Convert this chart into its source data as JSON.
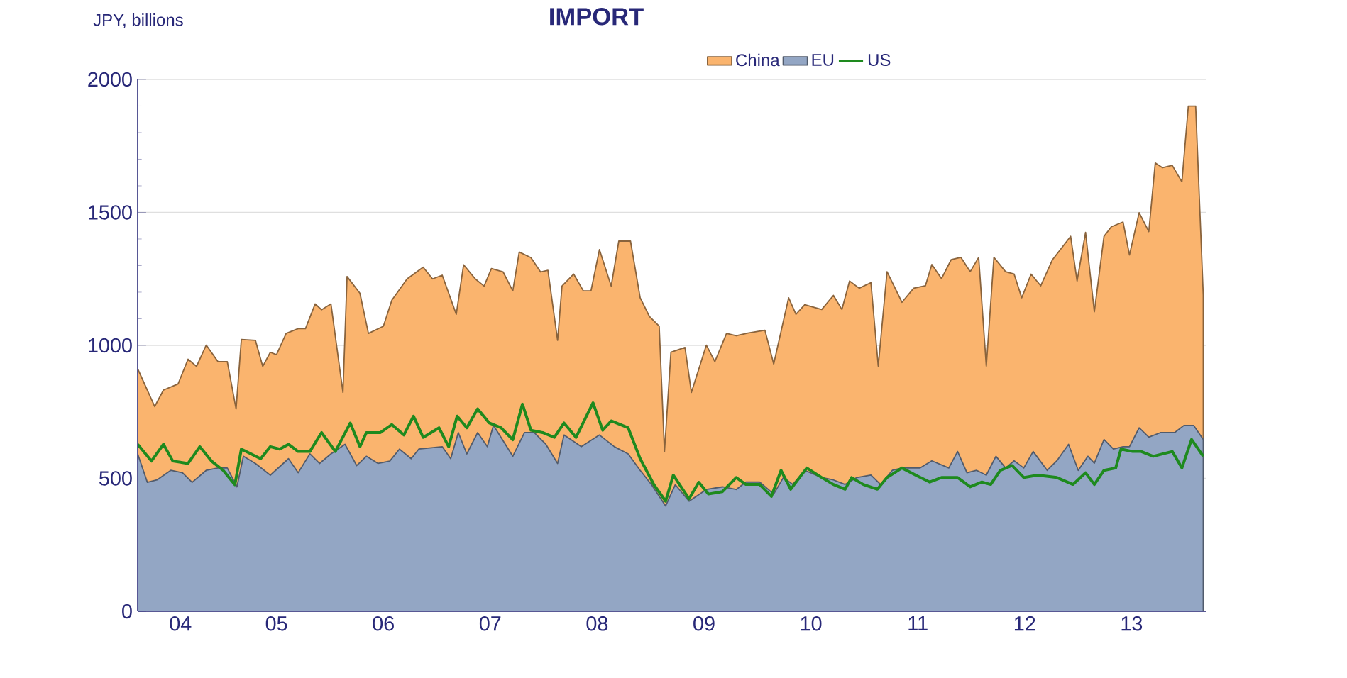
{
  "chart_data": {
    "type": "area",
    "title": "IMPORT",
    "ylabel": "JPY, billions",
    "xlim": [
      "2004-03-15",
      "2014-03-15"
    ],
    "ylim": [
      0,
      2000
    ],
    "yticks": [
      0,
      500,
      1000,
      1500,
      2000
    ],
    "xticks": [
      {
        "value": "2005-01-01",
        "label": null
      },
      {
        "value": "2006-01-01",
        "label": null
      },
      {
        "value": "2007-01-01",
        "label": null
      },
      {
        "value": "2008-01-01",
        "label": null
      },
      {
        "value": "2009-01-01",
        "label": null
      },
      {
        "value": "2010-01-01",
        "label": null
      },
      {
        "value": "2011-01-01",
        "label": null
      },
      {
        "value": "2012-01-01",
        "label": null
      },
      {
        "value": "2013-01-01",
        "label": null
      },
      {
        "value": "2014-01-01",
        "label": null
      },
      {
        "value": "2004-08-08",
        "label": "04"
      },
      {
        "value": "2005-07-02",
        "label": "05"
      },
      {
        "value": "2006-07-02",
        "label": "06"
      },
      {
        "value": "2007-07-02",
        "label": "07"
      },
      {
        "value": "2008-07-02",
        "label": "08"
      },
      {
        "value": "2009-07-02",
        "label": "09"
      },
      {
        "value": "2010-07-02",
        "label": "10"
      },
      {
        "value": "2011-07-02",
        "label": "11"
      },
      {
        "value": "2012-07-02",
        "label": "12"
      },
      {
        "value": "2013-07-02",
        "label": "13"
      }
    ],
    "grid": "y",
    "legend": "top",
    "series": [
      {
        "name": "China",
        "color": "#fab46e",
        "x": [
          "2004-03-15",
          "2004-05-12",
          "2004-06-11",
          "2004-07-31",
          "2004-09-03",
          "2004-10-02",
          "2004-11-04",
          "2004-12-14",
          "2005-01-15",
          "2005-02-14",
          "2005-03-04",
          "2005-04-21",
          "2005-05-16",
          "2005-06-11",
          "2005-07-02",
          "2005-08-04",
          "2005-09-14",
          "2005-10-09",
          "2005-11-11",
          "2005-12-03",
          "2006-01-04",
          "2006-02-14",
          "2006-02-28",
          "2006-04-13",
          "2006-05-12",
          "2006-07-02",
          "2006-07-31",
          "2006-09-21",
          "2006-11-15",
          "2006-12-17",
          "2007-01-19",
          "2007-03-08",
          "2007-04-02",
          "2007-05-12",
          "2007-06-11",
          "2007-07-06",
          "2007-08-15",
          "2007-09-17",
          "2007-10-09",
          "2007-11-18",
          "2007-12-21",
          "2008-01-15",
          "2008-02-17",
          "2008-03-04",
          "2008-04-13",
          "2008-05-16",
          "2008-06-11",
          "2008-07-10",
          "2008-08-19",
          "2008-09-14",
          "2008-10-24",
          "2008-11-26",
          "2008-12-28",
          "2009-01-30",
          "2009-02-17",
          "2009-03-11",
          "2009-04-28",
          "2009-05-20",
          "2009-07-10",
          "2009-08-08",
          "2009-09-17",
          "2009-10-20",
          "2009-11-29",
          "2010-01-26",
          "2010-02-25",
          "2010-04-17",
          "2010-05-12",
          "2010-06-11",
          "2010-08-08",
          "2010-09-17",
          "2010-10-16",
          "2010-11-11",
          "2010-12-14",
          "2011-01-23",
          "2011-02-17",
          "2011-03-19",
          "2011-05-09",
          "2011-06-18",
          "2011-07-28",
          "2011-08-19",
          "2011-09-21",
          "2011-10-24",
          "2011-11-26",
          "2011-12-28",
          "2012-01-26",
          "2012-02-21",
          "2012-03-19",
          "2012-04-28",
          "2012-05-27",
          "2012-06-22",
          "2012-07-24",
          "2012-08-26",
          "2012-10-05",
          "2012-12-06",
          "2012-12-28",
          "2013-01-26",
          "2013-02-25",
          "2013-03-30",
          "2013-04-24",
          "2013-06-03",
          "2013-06-25",
          "2013-07-28",
          "2013-08-30",
          "2013-09-21",
          "2013-10-16",
          "2013-11-18",
          "2013-12-21",
          "2014-01-12",
          "2014-02-06",
          "2014-03-04"
        ],
        "values": [
          912,
          770,
          832,
          855,
          948,
          921,
          1001,
          939,
          939,
          761,
          1022,
          1019,
          921,
          974,
          965,
          1045,
          1063,
          1063,
          1156,
          1134,
          1156,
          823,
          1259,
          1196,
          1045,
          1072,
          1170,
          1250,
          1294,
          1250,
          1264,
          1117,
          1303,
          1250,
          1223,
          1289,
          1276,
          1205,
          1351,
          1330,
          1276,
          1282,
          1019,
          1223,
          1268,
          1205,
          1205,
          1360,
          1223,
          1392,
          1392,
          1179,
          1108,
          1072,
          601,
          974,
          992,
          823,
          1001,
          939,
          1045,
          1036,
          1046,
          1057,
          930,
          1179,
          1117,
          1153,
          1135,
          1188,
          1135,
          1242,
          1215,
          1236,
          922,
          1277,
          1162,
          1215,
          1224,
          1304,
          1251,
          1322,
          1331,
          1277,
          1331,
          922,
          1331,
          1277,
          1268,
          1179,
          1268,
          1224,
          1322,
          1410,
          1242,
          1425,
          1126,
          1410,
          1446,
          1464,
          1340,
          1499,
          1428,
          1686,
          1668,
          1677,
          1615,
          1900,
          1900,
          1188
        ]
      },
      {
        "name": "US",
        "type": "line",
        "color": "#1e8a1e",
        "x": [
          "2004-03-15",
          "2004-05-01",
          "2004-06-11",
          "2004-07-13",
          "2004-09-03",
          "2004-10-13",
          "2004-11-22",
          "2005-01-01",
          "2005-02-10",
          "2005-03-04",
          "2005-05-09",
          "2005-06-11",
          "2005-07-13",
          "2005-08-12",
          "2005-09-14",
          "2005-10-24",
          "2005-12-03",
          "2006-01-19",
          "2006-03-11",
          "2006-04-13",
          "2006-05-05",
          "2006-06-22",
          "2006-07-31",
          "2006-09-10",
          "2006-10-13",
          "2006-11-15",
          "2007-01-08",
          "2007-02-10",
          "2007-03-11",
          "2007-04-13",
          "2007-05-20",
          "2007-06-29",
          "2007-08-08",
          "2007-09-17",
          "2007-10-20",
          "2007-11-18",
          "2007-12-28",
          "2008-02-06",
          "2008-03-11",
          "2008-04-21",
          "2008-06-18",
          "2008-07-21",
          "2008-08-19",
          "2008-10-16",
          "2008-11-26",
          "2009-01-12",
          "2009-02-21",
          "2009-03-19",
          "2009-05-12",
          "2009-06-14",
          "2009-07-17",
          "2009-09-03",
          "2009-10-20",
          "2009-11-22",
          "2010-01-08",
          "2010-02-17",
          "2010-03-22",
          "2010-04-24",
          "2010-06-18",
          "2010-08-08",
          "2010-09-17",
          "2010-10-27",
          "2010-11-18",
          "2010-12-28",
          "2011-02-14",
          "2011-03-19",
          "2011-05-09",
          "2011-06-25",
          "2011-08-12",
          "2011-09-21",
          "2011-11-15",
          "2011-12-28",
          "2012-02-06",
          "2012-03-08",
          "2012-04-10",
          "2012-05-20",
          "2012-06-29",
          "2012-08-15",
          "2012-10-20",
          "2012-12-14",
          "2013-01-26",
          "2013-02-25",
          "2013-03-30",
          "2013-05-09",
          "2013-05-27",
          "2013-07-06",
          "2013-08-04",
          "2013-09-14",
          "2013-11-18",
          "2013-12-21",
          "2014-01-23",
          "2014-03-04"
        ],
        "values": [
          628,
          565,
          628,
          565,
          556,
          619,
          565,
          530,
          476,
          610,
          574,
          619,
          610,
          628,
          601,
          601,
          672,
          601,
          708,
          619,
          672,
          672,
          702,
          663,
          734,
          654,
          690,
          619,
          734,
          690,
          761,
          708,
          690,
          645,
          779,
          681,
          672,
          654,
          708,
          654,
          784,
          681,
          716,
          690,
          574,
          476,
          414,
          512,
          423,
          485,
          441,
          450,
          503,
          477,
          477,
          432,
          530,
          459,
          539,
          503,
          477,
          459,
          503,
          477,
          459,
          503,
          539,
          512,
          486,
          503,
          503,
          468,
          486,
          477,
          530,
          548,
          503,
          512,
          503,
          477,
          521,
          477,
          530,
          539,
          610,
          601,
          601,
          583,
          601,
          539,
          646,
          583
        ]
      },
      {
        "name": "EU",
        "color": "#93a6c4",
        "x": [
          "2004-03-15",
          "2004-04-17",
          "2004-05-20",
          "2004-07-06",
          "2004-08-15",
          "2004-09-17",
          "2004-11-04",
          "2004-12-14",
          "2005-01-15",
          "2005-02-17",
          "2005-03-11",
          "2005-04-21",
          "2005-06-11",
          "2005-08-12",
          "2005-09-14",
          "2005-10-24",
          "2005-11-26",
          "2006-01-04",
          "2006-02-21",
          "2006-04-02",
          "2006-05-05",
          "2006-06-14",
          "2006-07-24",
          "2006-08-26",
          "2006-10-05",
          "2006-10-31",
          "2007-01-19",
          "2007-02-17",
          "2007-03-15",
          "2007-04-13",
          "2007-05-20",
          "2007-06-22",
          "2007-07-13",
          "2007-09-17",
          "2007-10-27",
          "2007-11-29",
          "2008-01-08",
          "2008-02-17",
          "2008-03-11",
          "2008-05-09",
          "2008-07-10",
          "2008-08-30",
          "2008-10-16",
          "2008-11-26",
          "2009-01-04",
          "2009-02-21",
          "2009-03-26",
          "2009-05-12",
          "2009-07-10",
          "2009-09-03",
          "2009-10-20",
          "2009-11-22",
          "2010-01-08",
          "2010-02-25",
          "2010-03-30",
          "2010-05-01",
          "2010-06-11",
          "2010-08-08",
          "2010-09-17",
          "2010-10-27",
          "2010-12-06",
          "2011-01-23",
          "2011-02-25",
          "2011-04-06",
          "2011-05-09",
          "2011-07-10",
          "2011-08-19",
          "2011-10-16",
          "2011-11-15",
          "2011-12-17",
          "2012-01-19",
          "2012-02-21",
          "2012-03-26",
          "2012-04-28",
          "2012-05-27",
          "2012-06-29",
          "2012-07-31",
          "2012-09-17",
          "2012-10-20",
          "2012-11-29",
          "2013-01-01",
          "2013-02-03",
          "2013-02-25",
          "2013-03-30",
          "2013-05-01",
          "2013-06-03",
          "2013-06-25",
          "2013-07-28",
          "2013-08-30",
          "2013-10-09",
          "2013-11-26",
          "2013-12-28",
          "2014-01-30",
          "2014-03-04"
        ],
        "values": [
          592,
          485,
          494,
          530,
          521,
          485,
          530,
          539,
          539,
          468,
          583,
          556,
          512,
          574,
          521,
          592,
          556,
          592,
          628,
          548,
          583,
          556,
          565,
          610,
          574,
          610,
          619,
          574,
          672,
          592,
          672,
          619,
          699,
          583,
          672,
          672,
          628,
          556,
          663,
          619,
          663,
          619,
          592,
          530,
          476,
          396,
          476,
          414,
          458,
          468,
          458,
          486,
          486,
          441,
          503,
          477,
          530,
          503,
          494,
          477,
          503,
          512,
          477,
          530,
          539,
          539,
          566,
          539,
          601,
          521,
          530,
          512,
          583,
          539,
          566,
          539,
          601,
          530,
          566,
          628,
          530,
          583,
          557,
          646,
          610,
          619,
          619,
          690,
          655,
          672,
          672,
          699,
          699,
          646
        ]
      }
    ]
  }
}
